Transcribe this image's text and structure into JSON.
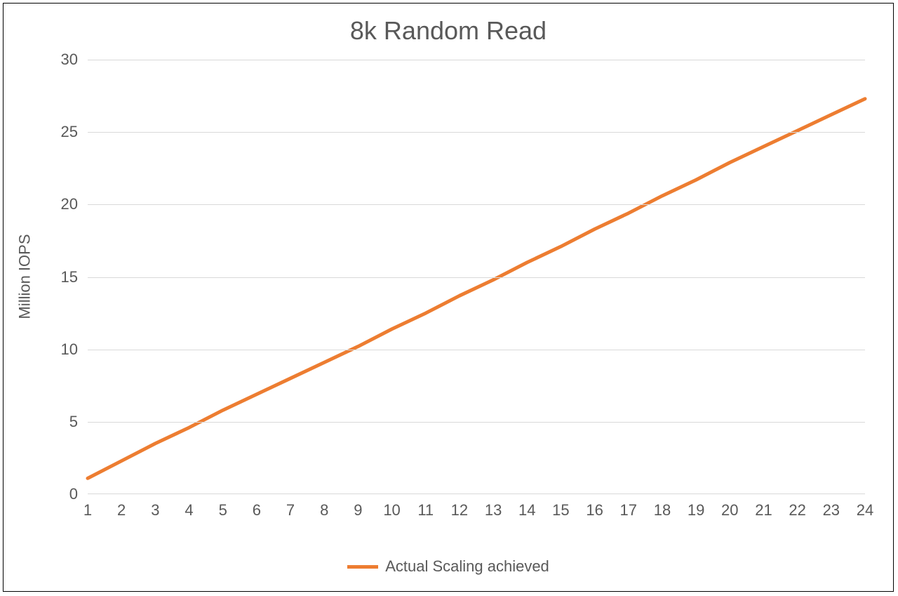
{
  "chart": {
    "type": "line",
    "title": "8k Random Read",
    "title_fontsize": 36,
    "title_color": "#595959",
    "y_axis_title": "Million IOPS",
    "axis_label_fontsize": 22,
    "axis_label_color": "#595959",
    "tick_fontsize": 22,
    "tick_color": "#595959",
    "background_color": "#ffffff",
    "frame_border_color": "#000000",
    "grid_color": "#d9d9d9",
    "x_baseline_color": "#d9d9d9",
    "ylim": [
      0,
      30
    ],
    "ytick_step": 5,
    "y_ticks": [
      0,
      5,
      10,
      15,
      20,
      25,
      30
    ],
    "x_categories": [
      "1",
      "2",
      "3",
      "4",
      "5",
      "6",
      "7",
      "8",
      "9",
      "10",
      "11",
      "12",
      "13",
      "14",
      "15",
      "16",
      "17",
      "18",
      "19",
      "20",
      "21",
      "22",
      "23",
      "24"
    ],
    "series": [
      {
        "name": "Actual Scaling achieved",
        "color": "#ed7d31",
        "line_width": 5,
        "values": [
          1.1,
          2.3,
          3.5,
          4.6,
          5.8,
          6.9,
          8.0,
          9.1,
          10.2,
          11.4,
          12.5,
          13.7,
          14.8,
          16.0,
          17.1,
          18.3,
          19.4,
          20.6,
          21.7,
          22.9,
          24.0,
          25.1,
          26.2,
          27.3
        ]
      }
    ],
    "legend": {
      "position": "bottom",
      "label": "Actual Scaling achieved",
      "swatch_color": "#ed7d31",
      "text_color": "#595959",
      "fontsize": 22
    }
  }
}
